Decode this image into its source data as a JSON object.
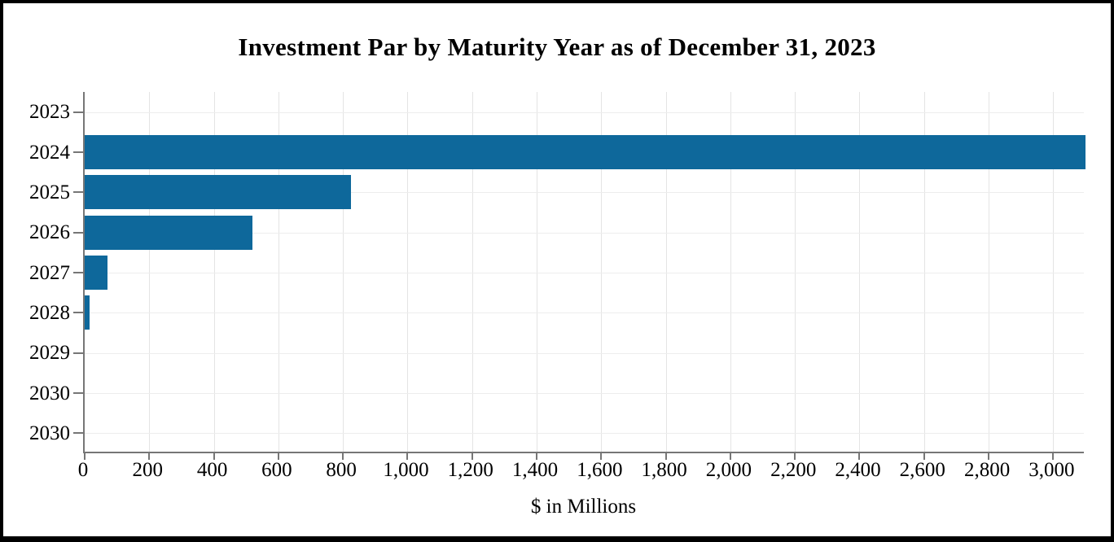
{
  "chart_data": {
    "type": "bar",
    "orientation": "horizontal",
    "title": "Investment Par by Maturity Year as of December 31, 2023",
    "xlabel": "$ in Millions",
    "ylabel": "",
    "categories": [
      "2023",
      "2024",
      "2025",
      "2026",
      "2027",
      "2028",
      "2029",
      "2030",
      "2030"
    ],
    "values": [
      0,
      3100,
      825,
      520,
      70,
      15,
      0,
      0,
      0
    ],
    "xlim": [
      0,
      3100
    ],
    "x_tick_values": [
      0,
      200,
      400,
      600,
      800,
      1000,
      1200,
      1400,
      1600,
      1800,
      2000,
      2200,
      2400,
      2600,
      2800,
      3000
    ],
    "x_tick_labels": [
      "0",
      "200",
      "400",
      "600",
      "800",
      "1,000",
      "1,200",
      "1,400",
      "1,600",
      "1,800",
      "2,000",
      "2,200",
      "2,400",
      "2,600",
      "2,800",
      "3,000"
    ],
    "grid": true,
    "legend": "none",
    "bar_color": "#0e689b",
    "axis_color": "#767676"
  }
}
